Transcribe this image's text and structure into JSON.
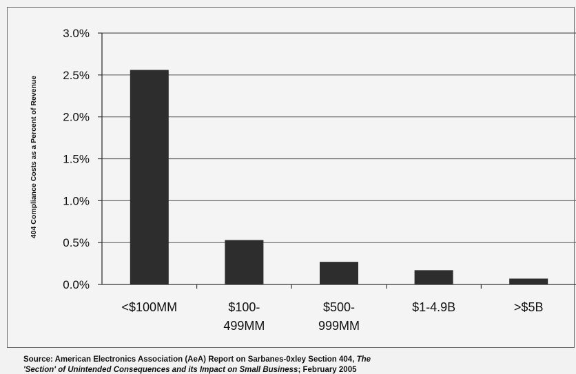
{
  "chart_data": {
    "type": "bar",
    "categories": [
      [
        "<$100MM"
      ],
      [
        "$100-",
        "499MM"
      ],
      [
        "$500-",
        "999MM"
      ],
      [
        "$1-4.9B"
      ],
      [
        ">$5B"
      ]
    ],
    "values": [
      2.56,
      0.53,
      0.27,
      0.17,
      0.07
    ],
    "ylabel": "404 Compliance Costs as a Percent of Revenue",
    "ylim": [
      0,
      3.0
    ],
    "yticks": [
      "0.0%",
      "0.5%",
      "1.0%",
      "1.5%",
      "2.0%",
      "2.5%",
      "3.0%"
    ],
    "grid": true,
    "bar_color": "#2d2d2d"
  },
  "source": {
    "prefix": "Source: American Electronics Association (AeA) Report on Sarbanes-0xley Section 404, ",
    "title_part1": "The",
    "title_part2": "'Section' of Unintended Consequences and its Impact on Small Business",
    "suffix": ";  February 2005"
  }
}
